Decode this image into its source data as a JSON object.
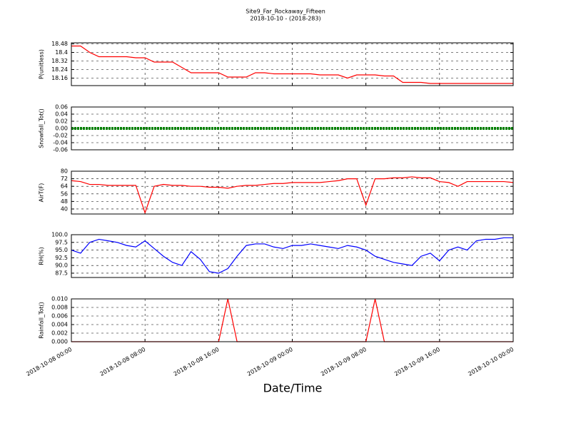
{
  "chart_data": {
    "title": "Site9_Far_Rockaway_Fifteen",
    "subtitle": "2018-10-10 - (2018-283)",
    "xlabel": "Date/Time",
    "xlim": [
      "2018-10-08 00:00",
      "2018-10-10 00:00"
    ],
    "xticks": [
      "2018-10-08 00:00",
      "2018-10-08 08:00",
      "2018-10-08 16:00",
      "2018-10-09 00:00",
      "2018-10-09 08:00",
      "2018-10-09 16:00",
      "2018-10-10 00:00"
    ],
    "x": [
      "2018-10-08 00:00",
      "2018-10-08 01:00",
      "2018-10-08 02:00",
      "2018-10-08 03:00",
      "2018-10-08 04:00",
      "2018-10-08 05:00",
      "2018-10-08 06:00",
      "2018-10-08 07:00",
      "2018-10-08 08:00",
      "2018-10-08 09:00",
      "2018-10-08 10:00",
      "2018-10-08 11:00",
      "2018-10-08 12:00",
      "2018-10-08 13:00",
      "2018-10-08 14:00",
      "2018-10-08 15:00",
      "2018-10-08 16:00",
      "2018-10-08 17:00",
      "2018-10-08 18:00",
      "2018-10-08 19:00",
      "2018-10-08 20:00",
      "2018-10-08 21:00",
      "2018-10-08 22:00",
      "2018-10-08 23:00",
      "2018-10-09 00:00",
      "2018-10-09 01:00",
      "2018-10-09 02:00",
      "2018-10-09 03:00",
      "2018-10-09 04:00",
      "2018-10-09 05:00",
      "2018-10-09 06:00",
      "2018-10-09 07:00",
      "2018-10-09 08:00",
      "2018-10-09 09:00",
      "2018-10-09 10:00",
      "2018-10-09 11:00",
      "2018-10-09 12:00",
      "2018-10-09 13:00",
      "2018-10-09 14:00",
      "2018-10-09 15:00",
      "2018-10-09 16:00",
      "2018-10-09 17:00",
      "2018-10-09 18:00",
      "2018-10-09 19:00",
      "2018-10-09 20:00",
      "2018-10-09 21:00",
      "2018-10-09 22:00",
      "2018-10-09 23:00",
      "2018-10-10 00:00"
    ],
    "grid": true,
    "panels": [
      {
        "type": "line",
        "ylabel": "P(unitless)",
        "ylim": [
          18.09,
          18.49
        ],
        "yticks": [
          18.16,
          18.24,
          18.32,
          18.4,
          18.48
        ],
        "series": [
          {
            "color": "#ff0000",
            "values": [
              18.46,
              18.46,
              18.4,
              18.36,
              18.36,
              18.36,
              18.36,
              18.35,
              18.35,
              18.31,
              18.31,
              18.31,
              18.26,
              18.21,
              18.21,
              18.21,
              18.21,
              18.17,
              18.17,
              18.17,
              18.21,
              18.21,
              18.2,
              18.2,
              18.2,
              18.2,
              18.2,
              18.19,
              18.19,
              18.19,
              18.16,
              18.19,
              18.19,
              18.19,
              18.18,
              18.18,
              18.12,
              18.12,
              18.12,
              18.11,
              18.11,
              18.11,
              18.11,
              18.11,
              18.11,
              18.11,
              18.11,
              18.11,
              18.11
            ]
          }
        ]
      },
      {
        "type": "line",
        "ylabel": "Snowfall_Tot()",
        "ylim": [
          -0.06,
          0.06
        ],
        "yticks": [
          -0.06,
          -0.04,
          -0.02,
          {
            "value": 0,
            "label": "0.00"
          },
          0.02,
          0.04,
          0.06
        ],
        "series": [
          {
            "color": "#008000",
            "values": [
              0,
              0,
              0,
              0,
              0,
              0,
              0,
              0,
              0,
              0,
              0,
              0,
              0,
              0,
              0,
              0,
              0,
              0,
              0,
              0,
              0,
              0,
              0,
              0,
              0,
              0,
              0,
              0,
              0,
              0,
              0,
              0,
              0,
              0,
              0,
              0,
              0,
              0,
              0,
              0,
              0,
              0,
              0,
              0,
              0,
              0,
              0,
              0,
              0
            ]
          }
        ]
      },
      {
        "type": "line",
        "ylabel": "AirT(F)",
        "ylim": [
          34.7,
          80
        ],
        "yticks": [
          40,
          48,
          56,
          64,
          72,
          80
        ],
        "series": [
          {
            "color": "#ff0000",
            "values": [
              70,
              69,
              66,
              66,
              65,
              65,
              65,
              65,
              36,
              64,
              66,
              65,
              65,
              64,
              64,
              63,
              63,
              62,
              64,
              65,
              65,
              66,
              67,
              67,
              68,
              68,
              68,
              68,
              69,
              70,
              72,
              72,
              44,
              72,
              72,
              73,
              73,
              74,
              73,
              73,
              69,
              68,
              64,
              69,
              69,
              69,
              69,
              69,
              68
            ]
          }
        ]
      },
      {
        "type": "line",
        "ylabel": "RH(%)",
        "ylim": [
          86.1,
          100
        ],
        "yticks": [
          87.5,
          {
            "value": 90,
            "label": "90.0"
          },
          92.5,
          {
            "value": 95,
            "label": "95.0"
          },
          97.5,
          {
            "value": 100,
            "label": "100.0"
          }
        ],
        "series": [
          {
            "color": "#0000ff",
            "values": [
              95,
              94,
              97.5,
              98.5,
              98,
              97.5,
              96.5,
              96,
              98,
              95.5,
              93,
              91,
              90,
              94.5,
              92,
              88,
              87.5,
              89,
              93,
              96.5,
              97,
              97,
              96,
              95.5,
              96.5,
              96.5,
              97,
              96.5,
              96,
              95.5,
              96.5,
              96,
              95,
              93,
              92,
              91,
              90.5,
              90,
              93,
              94,
              91.5,
              95,
              96,
              95,
              98,
              98.5,
              98.5,
              99,
              99
            ]
          }
        ]
      },
      {
        "type": "line",
        "ylabel": "Rainfall_Tot()",
        "ylim": [
          0,
          0.01
        ],
        "yticks": [
          {
            "value": 0,
            "label": "0.000"
          },
          {
            "value": 0.002,
            "label": "0.002"
          },
          {
            "value": 0.004,
            "label": "0.004"
          },
          {
            "value": 0.006,
            "label": "0.006"
          },
          {
            "value": 0.008,
            "label": "0.008"
          },
          {
            "value": 0.01,
            "label": "0.010"
          }
        ],
        "series": [
          {
            "color": "#ff0000",
            "values": [
              0,
              0,
              0,
              0,
              0,
              0,
              0,
              0,
              0,
              0,
              0,
              0,
              0,
              0,
              0,
              0,
              0,
              0.01,
              0,
              0,
              0,
              0,
              0,
              0,
              0,
              0,
              0,
              0,
              0,
              0,
              0,
              0,
              0,
              0.01,
              0,
              0,
              0,
              0,
              0,
              0,
              0,
              0,
              0,
              0,
              0,
              0,
              0,
              0,
              0
            ]
          }
        ]
      }
    ]
  }
}
